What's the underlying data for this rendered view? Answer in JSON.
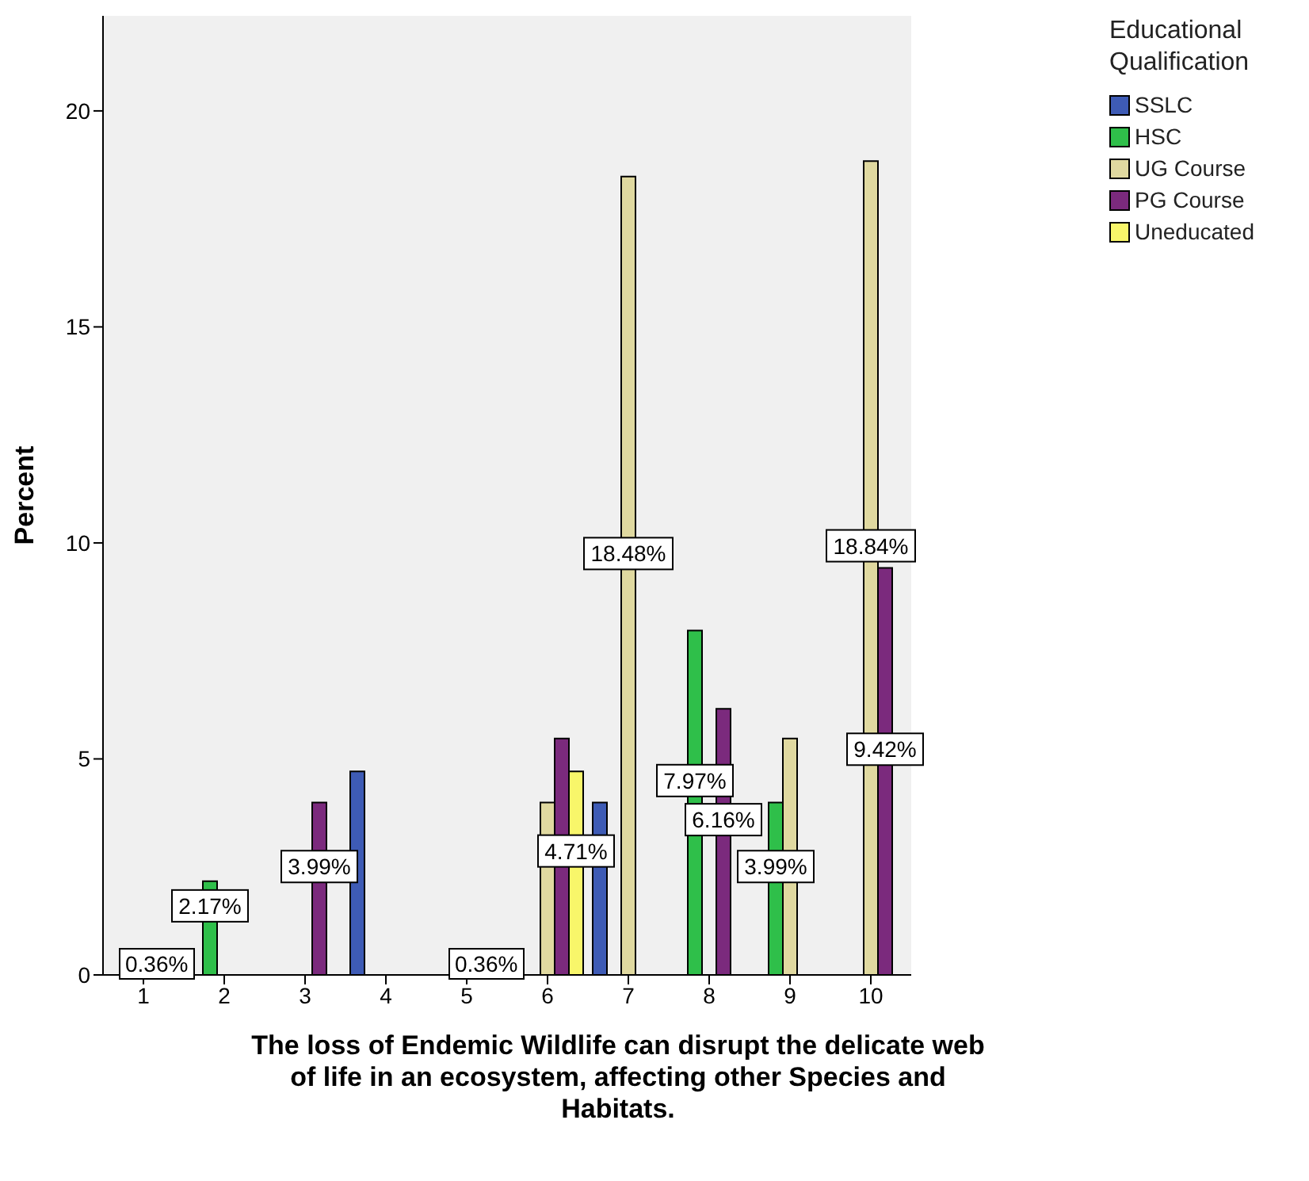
{
  "chart_data": {
    "type": "bar",
    "xlabel": "The loss of Endemic Wildlife can disrupt the delicate web of life in an ecosystem, affecting other Species and Habitats.",
    "ylabel": "Percent",
    "legend_title": "Educational Qualification",
    "legend": "right",
    "categories": [
      "1",
      "2",
      "3",
      "4",
      "5",
      "6",
      "7",
      "8",
      "9",
      "10"
    ],
    "ylim": [
      0,
      22.2
    ],
    "yticks": [
      0,
      5,
      10,
      15,
      20
    ],
    "series": [
      {
        "name": "SSLC",
        "color": "#3e5bb5",
        "values": [
          null,
          null,
          null,
          4.71,
          null,
          null,
          3.99,
          null,
          null,
          null
        ],
        "value_labels": [
          null,
          null,
          null,
          null,
          null,
          null,
          null,
          null,
          null,
          null
        ]
      },
      {
        "name": "HSC",
        "color": "#2fbf4a",
        "values": [
          null,
          2.17,
          null,
          null,
          null,
          null,
          null,
          7.97,
          3.99,
          null
        ],
        "value_labels": [
          null,
          "2.17%",
          null,
          null,
          null,
          null,
          null,
          "7.97%",
          "3.99%",
          null
        ]
      },
      {
        "name": "UG Course",
        "color": "#e0d9a0",
        "values": [
          null,
          null,
          null,
          null,
          null,
          3.99,
          18.48,
          null,
          5.47,
          18.84
        ],
        "value_labels": [
          null,
          null,
          null,
          null,
          null,
          null,
          "18.48%",
          null,
          null,
          "18.84%"
        ]
      },
      {
        "name": "PG Course",
        "color": "#7b2a7d",
        "values": [
          null,
          null,
          3.99,
          null,
          null,
          5.47,
          null,
          6.16,
          null,
          9.42
        ],
        "value_labels": [
          null,
          null,
          "3.99%",
          null,
          null,
          null,
          null,
          "6.16%",
          null,
          "9.42%"
        ]
      },
      {
        "name": "Uneducated",
        "color": "#f8f66a",
        "values": [
          null,
          null,
          null,
          null,
          null,
          4.71,
          null,
          null,
          null,
          null
        ],
        "value_labels": [
          null,
          null,
          null,
          null,
          null,
          "4.71%",
          null,
          null,
          null,
          null
        ]
      }
    ],
    "annotations": [
      "0.36%",
      "0.36%"
    ]
  }
}
